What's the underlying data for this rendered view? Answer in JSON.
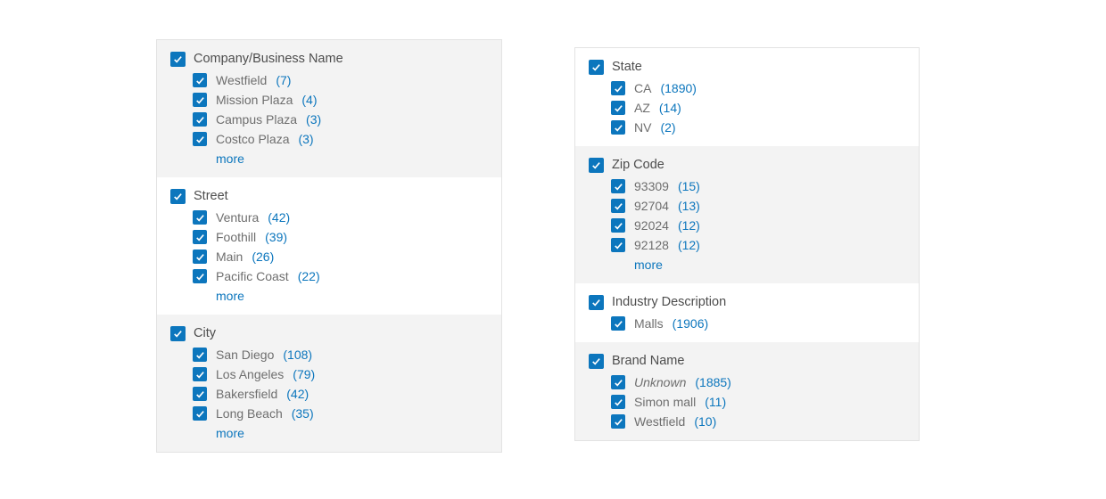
{
  "colors": {
    "accent_blue": "#0c76bd",
    "header_text": "#4d4d4d",
    "item_text": "#6e6e6e",
    "section_gray_background": "#f3f3f3",
    "panel_border": "#e3e3e3",
    "checkmark": "#ffffff"
  },
  "panels": [
    {
      "id": "left",
      "sections": [
        {
          "label": "Company/Business Name",
          "checked": true,
          "background": "gray",
          "items": [
            {
              "label": "Westfield",
              "count": "(7)",
              "checked": true
            },
            {
              "label": "Mission Plaza",
              "count": "(4)",
              "checked": true
            },
            {
              "label": "Campus Plaza",
              "count": "(3)",
              "checked": true
            },
            {
              "label": "Costco Plaza",
              "count": "(3)",
              "checked": true
            }
          ],
          "more_label": "more"
        },
        {
          "label": "Street",
          "checked": true,
          "background": "white",
          "items": [
            {
              "label": "Ventura",
              "count": "(42)",
              "checked": true
            },
            {
              "label": "Foothill",
              "count": "(39)",
              "checked": true
            },
            {
              "label": "Main",
              "count": "(26)",
              "checked": true
            },
            {
              "label": "Pacific Coast",
              "count": "(22)",
              "checked": true
            }
          ],
          "more_label": "more"
        },
        {
          "label": "City",
          "checked": true,
          "background": "gray",
          "items": [
            {
              "label": "San Diego",
              "count": "(108)",
              "checked": true
            },
            {
              "label": "Los Angeles",
              "count": "(79)",
              "checked": true
            },
            {
              "label": "Bakersfield",
              "count": "(42)",
              "checked": true
            },
            {
              "label": "Long Beach",
              "count": "(35)",
              "checked": true
            }
          ],
          "more_label": "more"
        }
      ]
    },
    {
      "id": "right",
      "sections": [
        {
          "label": "State",
          "checked": true,
          "background": "white",
          "items": [
            {
              "label": "CA",
              "count": "(1890)",
              "checked": true
            },
            {
              "label": "AZ",
              "count": "(14)",
              "checked": true
            },
            {
              "label": "NV",
              "count": "(2)",
              "checked": true
            }
          ]
        },
        {
          "label": "Zip Code",
          "checked": true,
          "background": "gray",
          "items": [
            {
              "label": "93309",
              "count": "(15)",
              "checked": true
            },
            {
              "label": "92704",
              "count": "(13)",
              "checked": true
            },
            {
              "label": "92024",
              "count": "(12)",
              "checked": true
            },
            {
              "label": "92128",
              "count": "(12)",
              "checked": true
            }
          ],
          "more_label": "more"
        },
        {
          "label": "Industry Description",
          "checked": true,
          "background": "white",
          "items": [
            {
              "label": "Malls",
              "count": "(1906)",
              "checked": true
            }
          ]
        },
        {
          "label": "Brand Name",
          "checked": true,
          "background": "gray",
          "items": [
            {
              "label": "Unknown",
              "count": "(1885)",
              "checked": true,
              "italic": true
            },
            {
              "label": "Simon mall",
              "count": "(11)",
              "checked": true
            },
            {
              "label": "Westfield",
              "count": "(10)",
              "checked": true
            }
          ]
        }
      ]
    }
  ]
}
